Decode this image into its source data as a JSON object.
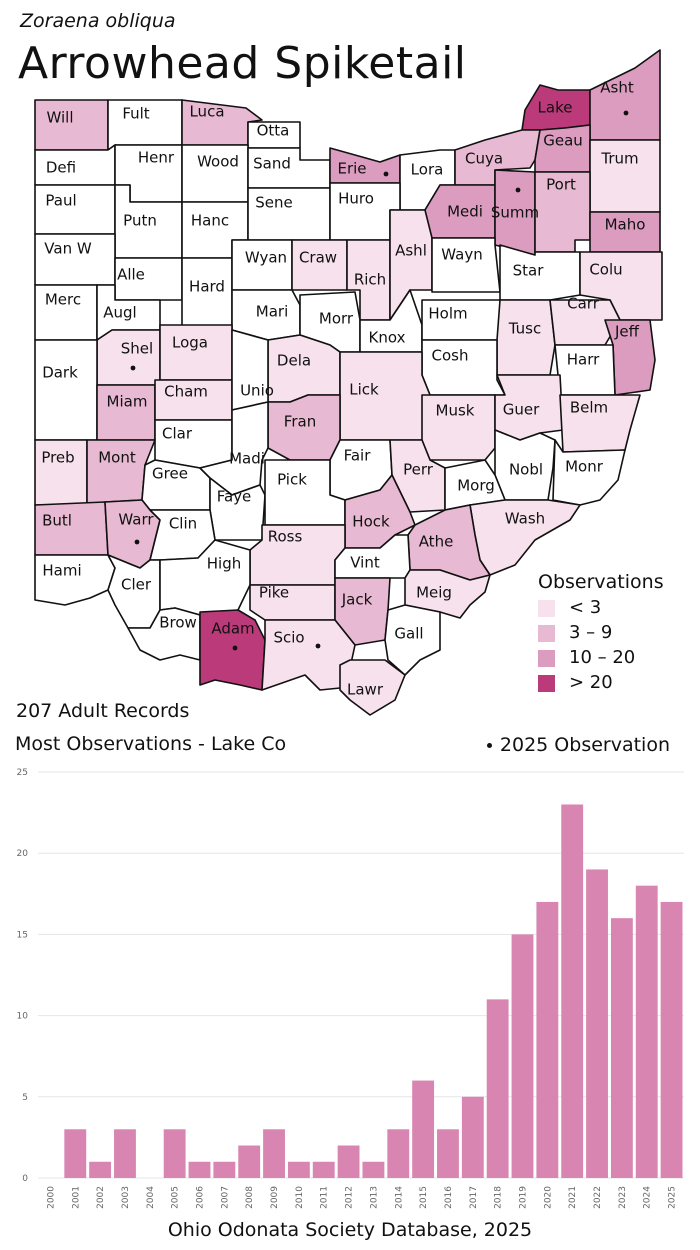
{
  "header": {
    "scientific_name": "Zoraena obliqua",
    "common_name": "Arrowhead Spiketail"
  },
  "summary": {
    "records": "207 Adult Records",
    "most_observations": "Most Observations - Lake Co"
  },
  "legend": {
    "title": "Observations",
    "bins": [
      {
        "label": "< 3",
        "color": "#f7e1ec"
      },
      {
        "label": "3 – 9",
        "color": "#e8b9d2"
      },
      {
        "label": "10 – 20",
        "color": "#dc9cbf"
      },
      {
        "label": "> 20",
        "color": "#bb3a79"
      }
    ],
    "marker_label": "2025  Observation"
  },
  "colors": {
    "none": "#ffffff",
    "border": "#111111",
    "bar": "#d886b1"
  },
  "counties": [
    {
      "name": "Will",
      "level": 2
    },
    {
      "name": "Fult",
      "level": 0
    },
    {
      "name": "Luca",
      "level": 2
    },
    {
      "name": "Otta",
      "level": 0
    },
    {
      "name": "Lake",
      "level": 4
    },
    {
      "name": "Asht",
      "level": 3,
      "obs2025": true
    },
    {
      "name": "Defi",
      "level": 0
    },
    {
      "name": "Henr",
      "level": 0
    },
    {
      "name": "Wood",
      "level": 0
    },
    {
      "name": "Sand",
      "level": 0
    },
    {
      "name": "Erie",
      "level": 3,
      "obs2025": true
    },
    {
      "name": "Lora",
      "level": 0
    },
    {
      "name": "Cuya",
      "level": 2
    },
    {
      "name": "Geau",
      "level": 3
    },
    {
      "name": "Trum",
      "level": 1
    },
    {
      "name": "Paul",
      "level": 0
    },
    {
      "name": "Putn",
      "level": 0
    },
    {
      "name": "Hanc",
      "level": 0
    },
    {
      "name": "Sene",
      "level": 0
    },
    {
      "name": "Huro",
      "level": 0
    },
    {
      "name": "Medi",
      "level": 3
    },
    {
      "name": "Summ",
      "level": 3,
      "obs2025": true
    },
    {
      "name": "Port",
      "level": 2
    },
    {
      "name": "Maho",
      "level": 3
    },
    {
      "name": "Van W",
      "level": 0
    },
    {
      "name": "Alle",
      "level": 0
    },
    {
      "name": "Hard",
      "level": 0
    },
    {
      "name": "Wyan",
      "level": 0
    },
    {
      "name": "Craw",
      "level": 1
    },
    {
      "name": "Rich",
      "level": 1
    },
    {
      "name": "Ashl",
      "level": 1
    },
    {
      "name": "Wayn",
      "level": 0
    },
    {
      "name": "Star",
      "level": 0
    },
    {
      "name": "Colu",
      "level": 1
    },
    {
      "name": "Merc",
      "level": 0
    },
    {
      "name": "Augl",
      "level": 0
    },
    {
      "name": "Mari",
      "level": 0
    },
    {
      "name": "Morr",
      "level": 0
    },
    {
      "name": "Knox",
      "level": 0
    },
    {
      "name": "Holm",
      "level": 0
    },
    {
      "name": "Tusc",
      "level": 1
    },
    {
      "name": "Carr",
      "level": 1
    },
    {
      "name": "Jeff",
      "level": 3
    },
    {
      "name": "Shel",
      "level": 1,
      "obs2025": true
    },
    {
      "name": "Loga",
      "level": 1
    },
    {
      "name": "Dark",
      "level": 0
    },
    {
      "name": "Dela",
      "level": 1
    },
    {
      "name": "Cosh",
      "level": 0
    },
    {
      "name": "Harr",
      "level": 0
    },
    {
      "name": "Miam",
      "level": 2
    },
    {
      "name": "Cham",
      "level": 1
    },
    {
      "name": "Unio",
      "level": 0
    },
    {
      "name": "Lick",
      "level": 1
    },
    {
      "name": "Musk",
      "level": 1
    },
    {
      "name": "Guer",
      "level": 1
    },
    {
      "name": "Belm",
      "level": 1
    },
    {
      "name": "Clar",
      "level": 0
    },
    {
      "name": "Fran",
      "level": 2
    },
    {
      "name": "Preb",
      "level": 1
    },
    {
      "name": "Mont",
      "level": 2
    },
    {
      "name": "Gree",
      "level": 0
    },
    {
      "name": "Madi",
      "level": 0
    },
    {
      "name": "Fair",
      "level": 0
    },
    {
      "name": "Perr",
      "level": 1
    },
    {
      "name": "Nobl",
      "level": 0
    },
    {
      "name": "Monr",
      "level": 0
    },
    {
      "name": "Faye",
      "level": 0
    },
    {
      "name": "Pick",
      "level": 0
    },
    {
      "name": "Morg",
      "level": 0
    },
    {
      "name": "Butl",
      "level": 2
    },
    {
      "name": "Warr",
      "level": 2,
      "obs2025": true
    },
    {
      "name": "Clin",
      "level": 0
    },
    {
      "name": "Hock",
      "level": 2
    },
    {
      "name": "Wash",
      "level": 1
    },
    {
      "name": "Ross",
      "level": 1
    },
    {
      "name": "Athe",
      "level": 2
    },
    {
      "name": "Hami",
      "level": 0
    },
    {
      "name": "Vint",
      "level": 0
    },
    {
      "name": "Cler",
      "level": 0
    },
    {
      "name": "High",
      "level": 0
    },
    {
      "name": "Pike",
      "level": 1
    },
    {
      "name": "Jack",
      "level": 2
    },
    {
      "name": "Meig",
      "level": 1
    },
    {
      "name": "Brow",
      "level": 0
    },
    {
      "name": "Adam",
      "level": 4,
      "obs2025": true
    },
    {
      "name": "Scio",
      "level": 1,
      "obs2025": true
    },
    {
      "name": "Gall",
      "level": 0
    },
    {
      "name": "Lawr",
      "level": 1
    }
  ],
  "chart_data": {
    "type": "bar",
    "categories": [
      "2000",
      "2001",
      "2002",
      "2003",
      "2004",
      "2005",
      "2006",
      "2007",
      "2008",
      "2009",
      "2010",
      "2011",
      "2012",
      "2013",
      "2014",
      "2015",
      "2016",
      "2017",
      "2018",
      "2019",
      "2020",
      "2021",
      "2022",
      "2023",
      "2024",
      "2025"
    ],
    "values": [
      0,
      3,
      1,
      3,
      0,
      3,
      1,
      1,
      2,
      3,
      1,
      1,
      2,
      1,
      3,
      6,
      3,
      5,
      11,
      15,
      17,
      23,
      19,
      16,
      18,
      17
    ],
    "y_ticks": [
      0,
      5,
      10,
      15,
      20,
      25
    ],
    "ylim": [
      0,
      25
    ],
    "grid": true,
    "source": "Ohio Odonata Society Database, 2025"
  }
}
